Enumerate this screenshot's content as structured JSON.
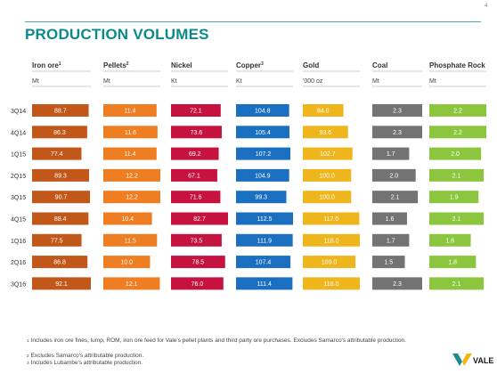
{
  "page_number": "4",
  "title": "PRODUCTION VOLUMES",
  "chart_data": {
    "type": "bar",
    "orientation": "horizontal",
    "categories": [
      "3Q14",
      "4Q14",
      "1Q15",
      "2Q15",
      "3Q15",
      "4Q15",
      "1Q16",
      "2Q16",
      "3Q16"
    ],
    "series": [
      {
        "name": "Iron ore",
        "sup": "1",
        "unit": "Mt",
        "color": "#c2571a",
        "values": [
          88.7,
          86.3,
          77.4,
          89.3,
          90.7,
          88.4,
          77.5,
          86.8,
          92.1
        ],
        "labels": [
          "88.7",
          "86.3",
          "77.4",
          "89.3",
          "90.7",
          "88.4",
          "77.5",
          "86.8",
          "92.1"
        ]
      },
      {
        "name": "Pellets",
        "sup": "2",
        "unit": "Mt",
        "color": "#ef7d21",
        "values": [
          11.4,
          11.6,
          11.4,
          12.2,
          12.2,
          10.4,
          11.5,
          10.0,
          12.1
        ],
        "labels": [
          "11.4",
          "11.6",
          "11.4",
          "12.2",
          "12.2",
          "10.4",
          "11.5",
          "10.0",
          "12.1"
        ]
      },
      {
        "name": "Nickel",
        "sup": "",
        "unit": "Kt",
        "color": "#c5123f",
        "values": [
          72.1,
          73.6,
          69.2,
          67.1,
          71.6,
          82.7,
          73.5,
          78.5,
          76.0
        ],
        "labels": [
          "72.1",
          "73.6",
          "69.2",
          "67.1",
          "71.6",
          "82.7",
          "73.5",
          "78.5",
          "76.0"
        ]
      },
      {
        "name": "Copper",
        "sup": "3",
        "unit": "Kt",
        "color": "#1a6fc0",
        "values": [
          104.8,
          105.4,
          107.2,
          104.9,
          99.3,
          112.5,
          111.9,
          107.4,
          111.4
        ],
        "labels": [
          "104.8",
          "105.4",
          "107.2",
          "104.9",
          "99.3",
          "112.5",
          "111.9",
          "107.4",
          "111.4"
        ]
      },
      {
        "name": "Gold",
        "sup": "",
        "unit": "'000 oz",
        "color": "#efb51c",
        "values": [
          84.0,
          93.6,
          102.7,
          100.0,
          100.0,
          117.0,
          118.0,
          109.0,
          118.0
        ],
        "labels": [
          "84.0",
          "93.6",
          "102.7",
          "100.0",
          "100.0",
          "117.0",
          "118.0",
          "109.0",
          "118.0"
        ]
      },
      {
        "name": "Coal",
        "sup": "",
        "unit": "Mt",
        "color": "#737373",
        "values": [
          2.3,
          2.3,
          1.7,
          2.0,
          2.1,
          1.6,
          1.7,
          1.5,
          2.3
        ],
        "labels": [
          "2.3",
          "2.3",
          "1.7",
          "2.0",
          "2.1",
          "1.6",
          "1.7",
          "1.5",
          "2.3"
        ]
      },
      {
        "name": "Phosphate Rock",
        "sup": "",
        "unit": "Mt",
        "color": "#8cc63f",
        "values": [
          2.2,
          2.2,
          2.0,
          2.1,
          1.9,
          2.1,
          1.6,
          1.8,
          2.1
        ],
        "labels": [
          "2.2",
          "2.2",
          "2.0",
          "2.1",
          "1.9",
          "2.1",
          "1.6",
          "1.8",
          "2.1"
        ]
      }
    ]
  },
  "footnotes": [
    {
      "num": "1",
      "text": "Includes iron ore fines, lump, ROM, iron ore feed for Vale's pellet plants and third party ore purchases. Excludes Samarco's attributable production."
    },
    {
      "num": "2",
      "text": "Excludes Samarco's attributable production."
    },
    {
      "num": "3",
      "text": "Includes Lubambe's attributable production."
    }
  ],
  "logo_text": "VALE",
  "colors": {
    "title": "#0a8a8a",
    "rule": "#4aa9a4",
    "logo_teal": "#1b8b8c",
    "logo_gold": "#f2b517"
  }
}
